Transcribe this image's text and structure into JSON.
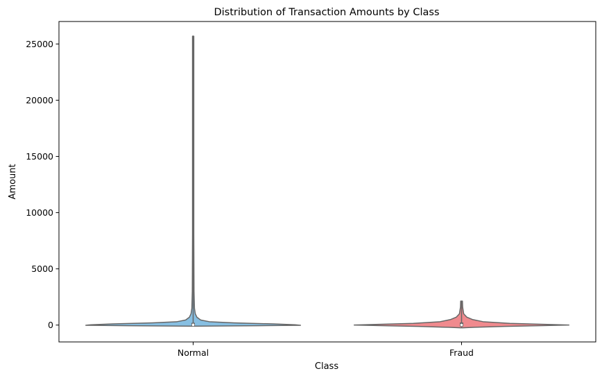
{
  "chart_data": {
    "type": "violin",
    "title": "Distribution of Transaction Amounts by Class",
    "xlabel": "Class",
    "ylabel": "Amount",
    "ylim": [
      -1500,
      27000
    ],
    "yticks": [
      0,
      5000,
      10000,
      15000,
      20000,
      25000
    ],
    "grid": false,
    "categories": [
      "Normal",
      "Fraud"
    ],
    "series": [
      {
        "category": "Normal",
        "color": "#87bfe2",
        "min": -100,
        "max": 25700,
        "q1": 5,
        "median": 22,
        "q3": 77,
        "density": [
          [
            -100,
            0.03
          ],
          [
            -60,
            0.6
          ],
          [
            -20,
            1.0
          ],
          [
            30,
            0.95
          ],
          [
            100,
            0.75
          ],
          [
            200,
            0.38
          ],
          [
            300,
            0.15
          ],
          [
            450,
            0.07
          ],
          [
            700,
            0.035
          ],
          [
            1000,
            0.02
          ],
          [
            1500,
            0.012
          ],
          [
            3000,
            0.008
          ],
          [
            8000,
            0.006
          ],
          [
            15000,
            0.006
          ],
          [
            25700,
            0.006
          ]
        ]
      },
      {
        "category": "Fraud",
        "color": "#f08a8e",
        "min": -240,
        "max": 2130,
        "q1": 1,
        "median": 9,
        "q3": 105,
        "density": [
          [
            -240,
            0.012
          ],
          [
            -200,
            0.12
          ],
          [
            -120,
            0.4
          ],
          [
            -50,
            0.75
          ],
          [
            0,
            1.0
          ],
          [
            60,
            0.8
          ],
          [
            150,
            0.45
          ],
          [
            300,
            0.2
          ],
          [
            500,
            0.1
          ],
          [
            700,
            0.05
          ],
          [
            1000,
            0.02
          ],
          [
            1300,
            0.015
          ],
          [
            1600,
            0.01
          ],
          [
            2130,
            0.008
          ]
        ]
      }
    ]
  }
}
